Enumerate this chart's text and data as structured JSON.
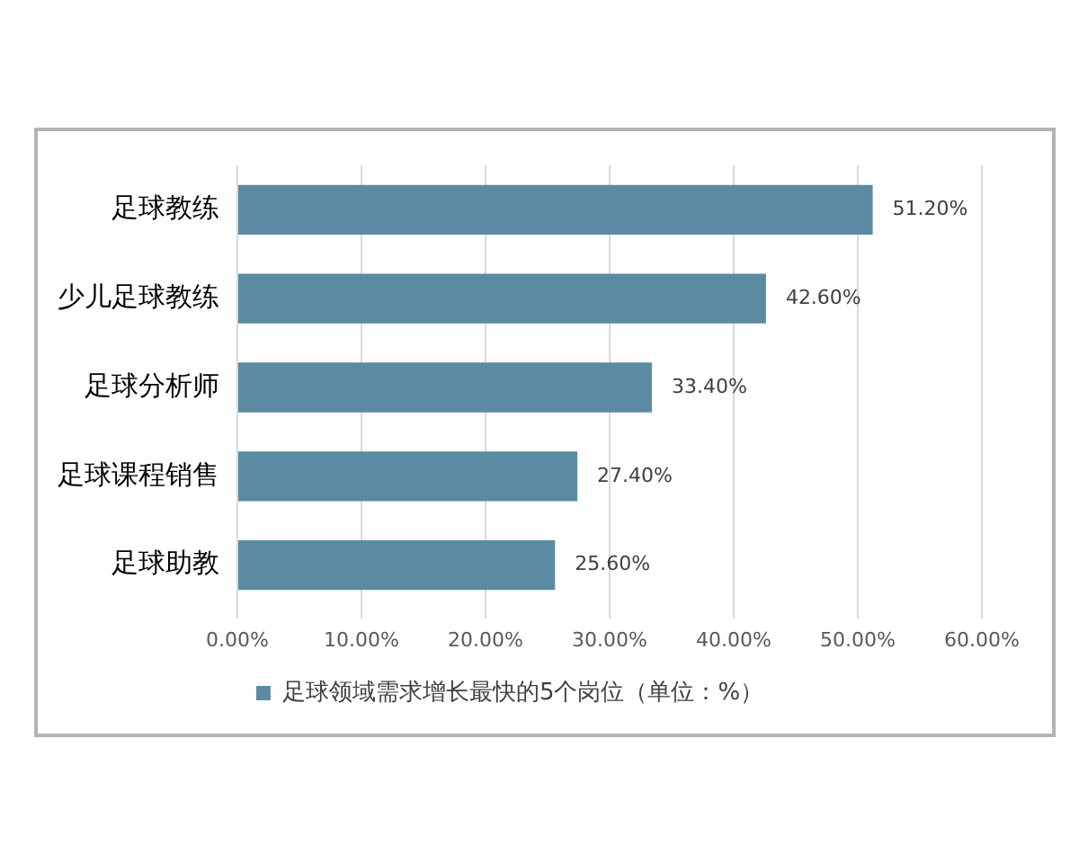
{
  "chart_data": {
    "type": "bar",
    "orientation": "horizontal",
    "categories": [
      "足球教练",
      "少儿足球教练",
      "足球分析师",
      "足球课程销售",
      "足球助教"
    ],
    "series": [
      {
        "name": "足球领域需求增长最快的5个岗位（单位：%）",
        "color": "#5b8ba3",
        "values": [
          51.2,
          42.6,
          33.4,
          27.4,
          25.6
        ],
        "value_labels": [
          "51.20%",
          "42.60%",
          "33.40%",
          "27.40%",
          "25.60%"
        ]
      }
    ],
    "xlim": [
      0,
      60
    ],
    "xticks": [
      {
        "value": 0,
        "label": "0.00%"
      },
      {
        "value": 10,
        "label": "10.00%"
      },
      {
        "value": 20,
        "label": "20.00%"
      },
      {
        "value": 30,
        "label": "30.00%"
      },
      {
        "value": 40,
        "label": "40.00%"
      },
      {
        "value": 50,
        "label": "50.00%"
      },
      {
        "value": 60,
        "label": "60.00%"
      }
    ],
    "grid": "x",
    "legend": "bottom"
  }
}
